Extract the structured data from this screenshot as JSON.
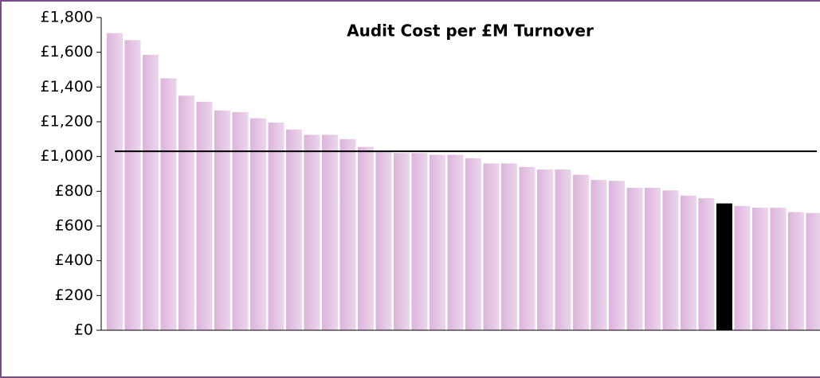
{
  "chart_data": {
    "type": "bar",
    "title": "Audit Cost per £M Turnover",
    "categories": [
      null,
      null,
      null,
      null,
      null,
      null,
      null,
      null,
      null,
      null,
      null,
      null,
      null,
      null,
      null,
      null,
      null,
      null,
      null,
      null,
      null,
      null,
      null,
      null,
      null,
      null,
      null,
      null,
      null,
      null,
      null,
      null,
      null,
      null,
      null,
      null,
      null,
      null,
      null,
      null
    ],
    "values": [
      1710,
      1670,
      1585,
      1450,
      1350,
      1315,
      1265,
      1255,
      1220,
      1195,
      1155,
      1125,
      1125,
      1100,
      1055,
      1025,
      1020,
      1020,
      1010,
      1010,
      990,
      960,
      960,
      940,
      925,
      925,
      895,
      865,
      860,
      820,
      820,
      805,
      775,
      760,
      730,
      715,
      705,
      705,
      680,
      675
    ],
    "colors": [
      "#dcb4dc",
      "#dcb4dc",
      "#dcb4dc",
      "#dcb4dc",
      "#dcb4dc",
      "#dcb4dc",
      "#dcb4dc",
      "#dcb4dc",
      "#dcb4dc",
      "#dcb4dc",
      "#dcb4dc",
      "#dcb4dc",
      "#dcb4dc",
      "#dcb4dc",
      "#dcb4dc",
      "#dcb4dc",
      "#dcb4dc",
      "#dcb4dc",
      "#dcb4dc",
      "#dcb4dc",
      "#dcb4dc",
      "#dcb4dc",
      "#dcb4dc",
      "#dcb4dc",
      "#dcb4dc",
      "#dcb4dc",
      "#dcb4dc",
      "#dcb4dc",
      "#dcb4dc",
      "#dcb4dc",
      "#dcb4dc",
      "#dcb4dc",
      "#dcb4dc",
      "#dcb4dc",
      "#000000",
      "#dcb4dc",
      "#dcb4dc",
      "#dcb4dc",
      "#dcb4dc",
      "#dcb4dc"
    ],
    "reference_line": 1030,
    "ylim": [
      0,
      1800
    ],
    "yticks": [
      {
        "value": 0,
        "label": "£0"
      },
      {
        "value": 200,
        "label": "£200"
      },
      {
        "value": 400,
        "label": "£400"
      },
      {
        "value": 600,
        "label": "£600"
      },
      {
        "value": 800,
        "label": "£800"
      },
      {
        "value": 1000,
        "label": "£1,000"
      },
      {
        "value": 1200,
        "label": "£1,200"
      },
      {
        "value": 1400,
        "label": "£1,400"
      },
      {
        "value": 1600,
        "label": "£1,600"
      },
      {
        "value": 1800,
        "label": "£1,800"
      }
    ]
  }
}
